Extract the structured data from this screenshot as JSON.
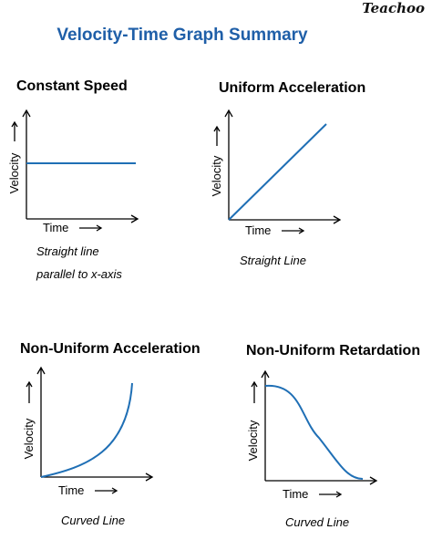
{
  "brand": "Teachoo",
  "title": "Velocity-Time Graph Summary",
  "panels": [
    {
      "title": "Constant Speed",
      "x_label": "Time",
      "y_label": "Velocity",
      "caption_lines": [
        "Straight line",
        "parallel to x-axis"
      ],
      "curve": "constant"
    },
    {
      "title": "Uniform Acceleration",
      "x_label": "Time",
      "y_label": "Velocity",
      "caption_lines": [
        "Straight Line"
      ],
      "curve": "linear-increasing"
    },
    {
      "title": "Non-Uniform Acceleration",
      "x_label": "Time",
      "y_label": "Velocity",
      "caption_lines": [
        "Curved Line"
      ],
      "curve": "curved-increasing"
    },
    {
      "title": "Non-Uniform Retardation",
      "x_label": "Time",
      "y_label": "Velocity",
      "caption_lines": [
        "Curved Line"
      ],
      "curve": "curved-decreasing"
    }
  ],
  "colors": {
    "title": "#1f5fa8",
    "curve": "#1f6fb5",
    "axes": "#000000"
  }
}
